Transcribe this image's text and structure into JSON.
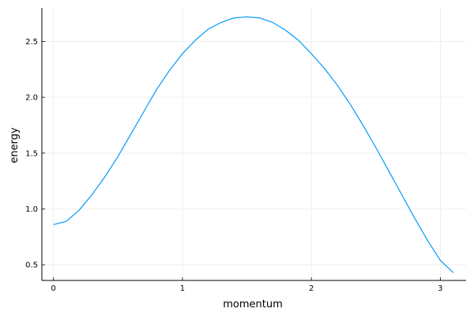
{
  "chart_data": {
    "type": "line",
    "xlabel": "momentum",
    "ylabel": "energy",
    "xlim": [
      -0.09,
      3.2
    ],
    "ylim": [
      0.36,
      2.8
    ],
    "xticks": [
      0,
      1,
      2,
      3
    ],
    "xtick_labels": [
      "0",
      "1",
      "2",
      "3"
    ],
    "yticks": [
      0.5,
      1.0,
      1.5,
      2.0,
      2.5
    ],
    "ytick_labels": [
      "0.5",
      "1.0",
      "1.5",
      "2.0",
      "2.5"
    ],
    "grid": true,
    "legend": "none",
    "colors": {
      "series": "#009AF9",
      "grid": "#EBEBEB",
      "axis": "#000000"
    },
    "series": [
      {
        "x": [
          0.0,
          0.1,
          0.2,
          0.3,
          0.4,
          0.5,
          0.6,
          0.7,
          0.8,
          0.9,
          1.0,
          1.1,
          1.2,
          1.3,
          1.4,
          1.5,
          1.6,
          1.7,
          1.8,
          1.9,
          2.0,
          2.1,
          2.2,
          2.3,
          2.4,
          2.5,
          2.6,
          2.7,
          2.8,
          2.9,
          3.0,
          3.1
        ],
        "y": [
          0.86,
          0.89,
          0.99,
          1.13,
          1.29,
          1.47,
          1.67,
          1.87,
          2.07,
          2.24,
          2.39,
          2.51,
          2.61,
          2.67,
          2.71,
          2.72,
          2.71,
          2.67,
          2.6,
          2.51,
          2.39,
          2.26,
          2.11,
          1.94,
          1.75,
          1.55,
          1.34,
          1.13,
          0.92,
          0.72,
          0.54,
          0.43
        ]
      }
    ]
  }
}
